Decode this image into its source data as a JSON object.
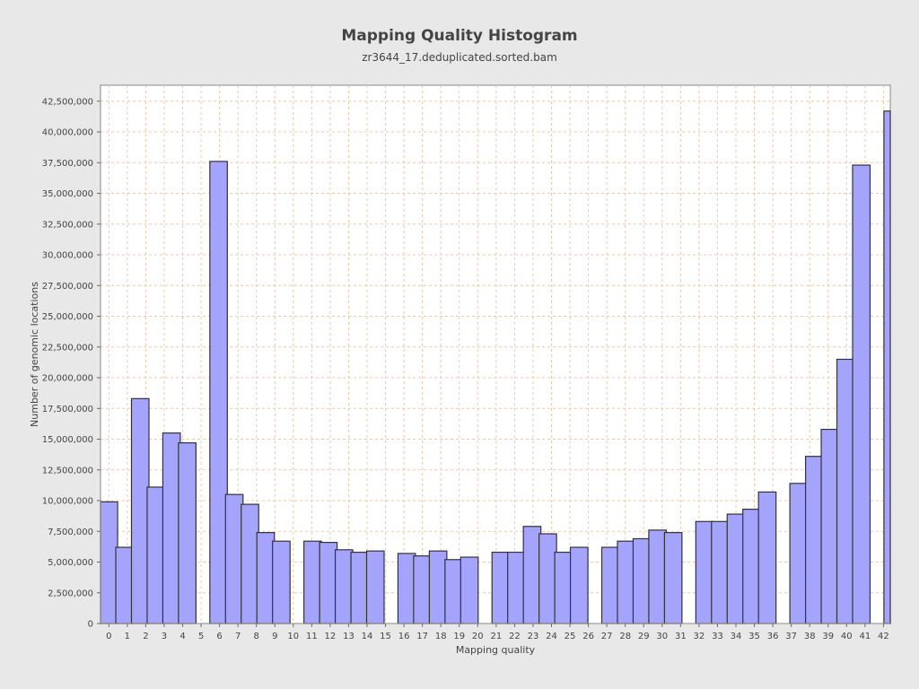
{
  "chart_data": {
    "type": "bar",
    "title": "Mapping Quality Histogram",
    "subtitle": "zr3644_17.deduplicated.sorted.bam",
    "xlabel": "Mapping quality",
    "ylabel": "Number of genomic locations",
    "ylim": [
      0,
      43800000
    ],
    "yticks": [
      0,
      2500000,
      5000000,
      7500000,
      10000000,
      12500000,
      15000000,
      17500000,
      20000000,
      22500000,
      25000000,
      27500000,
      30000000,
      32500000,
      35000000,
      37500000,
      40000000,
      42500000
    ],
    "ytick_labels": [
      "0",
      "2,500,000",
      "5,000,000",
      "7,500,000",
      "10,000,000",
      "12,500,000",
      "15,000,000",
      "17,500,000",
      "20,000,000",
      "22,500,000",
      "25,000,000",
      "27,500,000",
      "30,000,000",
      "32,500,000",
      "35,000,000",
      "37,500,000",
      "40,000,000",
      "42,500,000"
    ],
    "xticks": [
      0,
      1,
      2,
      3,
      4,
      5,
      6,
      7,
      8,
      9,
      10,
      11,
      12,
      13,
      14,
      15,
      16,
      17,
      18,
      19,
      20,
      21,
      22,
      23,
      24,
      25,
      26,
      27,
      28,
      29,
      30,
      31,
      32,
      33,
      34,
      35,
      36,
      37,
      38,
      39,
      40,
      41,
      42
    ],
    "grid": true,
    "bar_color": "#a4a4fc",
    "bar_edge_color": "#333333",
    "grid_color": "#f0c8a8",
    "bars": [
      {
        "x": 0,
        "value": 9900000
      },
      {
        "x": 0.85,
        "value": 6200000
      },
      {
        "x": 1.7,
        "value": 18300000
      },
      {
        "x": 2.55,
        "value": 11100000
      },
      {
        "x": 3.4,
        "value": 15500000
      },
      {
        "x": 4.25,
        "value": 14700000
      },
      {
        "x": 5.95,
        "value": 37600000
      },
      {
        "x": 6.8,
        "value": 10500000
      },
      {
        "x": 7.65,
        "value": 9700000
      },
      {
        "x": 8.5,
        "value": 7400000
      },
      {
        "x": 9.35,
        "value": 6700000
      },
      {
        "x": 11.05,
        "value": 6700000
      },
      {
        "x": 11.9,
        "value": 6600000
      },
      {
        "x": 12.75,
        "value": 6000000
      },
      {
        "x": 13.6,
        "value": 5800000
      },
      {
        "x": 14.45,
        "value": 5900000
      },
      {
        "x": 16.15,
        "value": 5700000
      },
      {
        "x": 17.0,
        "value": 5500000
      },
      {
        "x": 17.85,
        "value": 5900000
      },
      {
        "x": 18.7,
        "value": 5200000
      },
      {
        "x": 19.55,
        "value": 5400000
      },
      {
        "x": 21.25,
        "value": 5800000
      },
      {
        "x": 22.1,
        "value": 5800000
      },
      {
        "x": 22.95,
        "value": 7900000
      },
      {
        "x": 23.8,
        "value": 7300000
      },
      {
        "x": 24.65,
        "value": 5800000
      },
      {
        "x": 25.5,
        "value": 6200000
      },
      {
        "x": 27.2,
        "value": 6200000
      },
      {
        "x": 28.05,
        "value": 6700000
      },
      {
        "x": 28.9,
        "value": 6900000
      },
      {
        "x": 29.75,
        "value": 7600000
      },
      {
        "x": 30.6,
        "value": 7400000
      },
      {
        "x": 32.3,
        "value": 8300000
      },
      {
        "x": 33.15,
        "value": 8300000
      },
      {
        "x": 34.0,
        "value": 8900000
      },
      {
        "x": 34.85,
        "value": 9300000
      },
      {
        "x": 35.7,
        "value": 10700000
      },
      {
        "x": 37.4,
        "value": 11400000
      },
      {
        "x": 38.25,
        "value": 13600000
      },
      {
        "x": 39.1,
        "value": 15800000
      },
      {
        "x": 39.95,
        "value": 21500000
      },
      {
        "x": 40.8,
        "value": 37300000
      },
      {
        "x": 42.5,
        "value": 41700000
      }
    ]
  }
}
